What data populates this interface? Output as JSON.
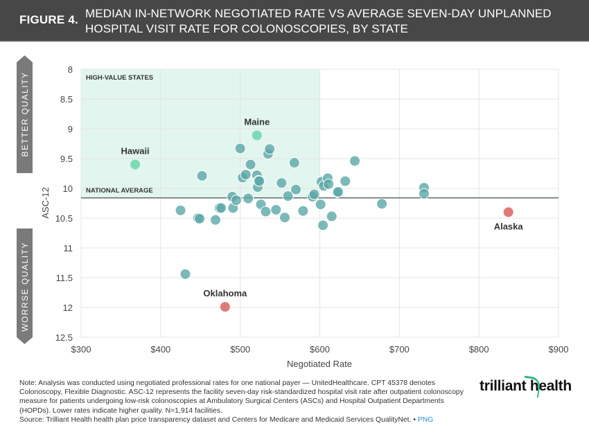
{
  "header": {
    "figure_label": "FIGURE 4.",
    "title": "MEDIAN IN-NETWORK NEGOTIATED RATE VS AVERAGE SEVEN-DAY UNPLANNED HOSPITAL VISIT RATE FOR COLONOSCOPIES, BY STATE"
  },
  "side_labels": {
    "better": "BETTER QUALITY",
    "worse": "WORRSE QUALITY"
  },
  "chart_data": {
    "type": "scatter",
    "title": "MEDIAN IN-NETWORK NEGOTIATED RATE VS AVERAGE SEVEN-DAY UNPLANNED HOSPITAL VISIT RATE FOR COLONOSCOPIES, BY STATE",
    "xlabel": "Negotiated Rate",
    "ylabel": "ASC-12",
    "xlim": [
      300,
      900
    ],
    "ylim": [
      8,
      12.5
    ],
    "y_inverted": true,
    "x_ticks": [
      300,
      400,
      500,
      600,
      700,
      800,
      900
    ],
    "x_tick_labels": [
      "$300",
      "$400",
      "$500",
      "$600",
      "$700",
      "$800",
      "$900"
    ],
    "y_ticks": [
      8,
      8.5,
      9,
      9.5,
      10,
      10.5,
      11,
      11.5,
      12,
      12.5
    ],
    "y_tick_labels": [
      "8",
      "8.5",
      "9",
      "9.5",
      "10",
      "10.5",
      "11",
      "11.5",
      "12",
      "12.5"
    ],
    "grid": true,
    "colors": {
      "state": "#5ba8a8",
      "highlight_good": "#7ddbb5",
      "highlight_bad": "#e07a7a",
      "region": "#e2f5ef",
      "average_line": "#5f6b69"
    },
    "region": {
      "label": "HIGH-VALUE STATES",
      "x_range": [
        300,
        600
      ],
      "y_range": [
        8,
        10.16
      ]
    },
    "reference_line": {
      "label": "NATIONAL AVERAGE",
      "y": 10.16
    },
    "highlighted": [
      {
        "name": "Hawaii",
        "x": 368,
        "y": 9.6,
        "kind": "good"
      },
      {
        "name": "Maine",
        "x": 521,
        "y": 9.11,
        "kind": "good"
      },
      {
        "name": "Alaska",
        "x": 837,
        "y": 10.4,
        "kind": "bad"
      },
      {
        "name": "Oklahoma",
        "x": 481,
        "y": 11.99,
        "kind": "bad"
      }
    ],
    "points": [
      {
        "x": 425,
        "y": 10.37
      },
      {
        "x": 431,
        "y": 11.44
      },
      {
        "x": 447,
        "y": 10.5
      },
      {
        "x": 449,
        "y": 10.51
      },
      {
        "x": 452,
        "y": 9.79
      },
      {
        "x": 469,
        "y": 10.53
      },
      {
        "x": 474,
        "y": 10.33
      },
      {
        "x": 476,
        "y": 10.33
      },
      {
        "x": 490,
        "y": 10.14
      },
      {
        "x": 491,
        "y": 10.33
      },
      {
        "x": 495,
        "y": 10.2
      },
      {
        "x": 500,
        "y": 9.33
      },
      {
        "x": 503,
        "y": 9.82
      },
      {
        "x": 507,
        "y": 9.77
      },
      {
        "x": 510,
        "y": 10.17
      },
      {
        "x": 513,
        "y": 9.6
      },
      {
        "x": 521,
        "y": 9.78
      },
      {
        "x": 522,
        "y": 9.98
      },
      {
        "x": 523,
        "y": 9.87
      },
      {
        "x": 524,
        "y": 9.88
      },
      {
        "x": 526,
        "y": 10.27
      },
      {
        "x": 532,
        "y": 10.39
      },
      {
        "x": 535,
        "y": 9.42
      },
      {
        "x": 537,
        "y": 9.34
      },
      {
        "x": 545,
        "y": 10.36
      },
      {
        "x": 552,
        "y": 9.91
      },
      {
        "x": 556,
        "y": 10.49
      },
      {
        "x": 560,
        "y": 10.13
      },
      {
        "x": 568,
        "y": 9.57
      },
      {
        "x": 570,
        "y": 10.02
      },
      {
        "x": 579,
        "y": 10.38
      },
      {
        "x": 591,
        "y": 10.14
      },
      {
        "x": 593,
        "y": 10.1
      },
      {
        "x": 601,
        "y": 10.27
      },
      {
        "x": 602,
        "y": 9.89
      },
      {
        "x": 604,
        "y": 10.62
      },
      {
        "x": 605,
        "y": 9.96
      },
      {
        "x": 610,
        "y": 9.83
      },
      {
        "x": 611,
        "y": 9.93
      },
      {
        "x": 615,
        "y": 10.47
      },
      {
        "x": 622,
        "y": 10.07
      },
      {
        "x": 623,
        "y": 10.06
      },
      {
        "x": 632,
        "y": 9.88
      },
      {
        "x": 644,
        "y": 9.54
      },
      {
        "x": 678,
        "y": 10.26
      },
      {
        "x": 731,
        "y": 9.99
      },
      {
        "x": 731,
        "y": 10.09
      }
    ]
  },
  "footer": {
    "note": "Note: Analysis was conducted using negotiated professional rates for one national payer — UnitedHealthcare. CPT 45378 denotes Colonoscopy, Flexible Diagnostic. ASC-12 represents the facility seven-day risk-standardized hospital visit rate after outpatient colonoscopy measure for patients undergoing low-risk colonoscopies at Ambulatory Surgical Centers (ASCs) and Hospital Outpatient Departments (HOPDs). Lower rates indicate higher quality. N=1,914 facilities.",
    "source": "Source: Trilliant Health health plan price transparency dataset and Centers for Medicare and Medicaid Services QualityNet.",
    "separator": "•",
    "png_link": "PNG",
    "logo": "trilliant health"
  }
}
